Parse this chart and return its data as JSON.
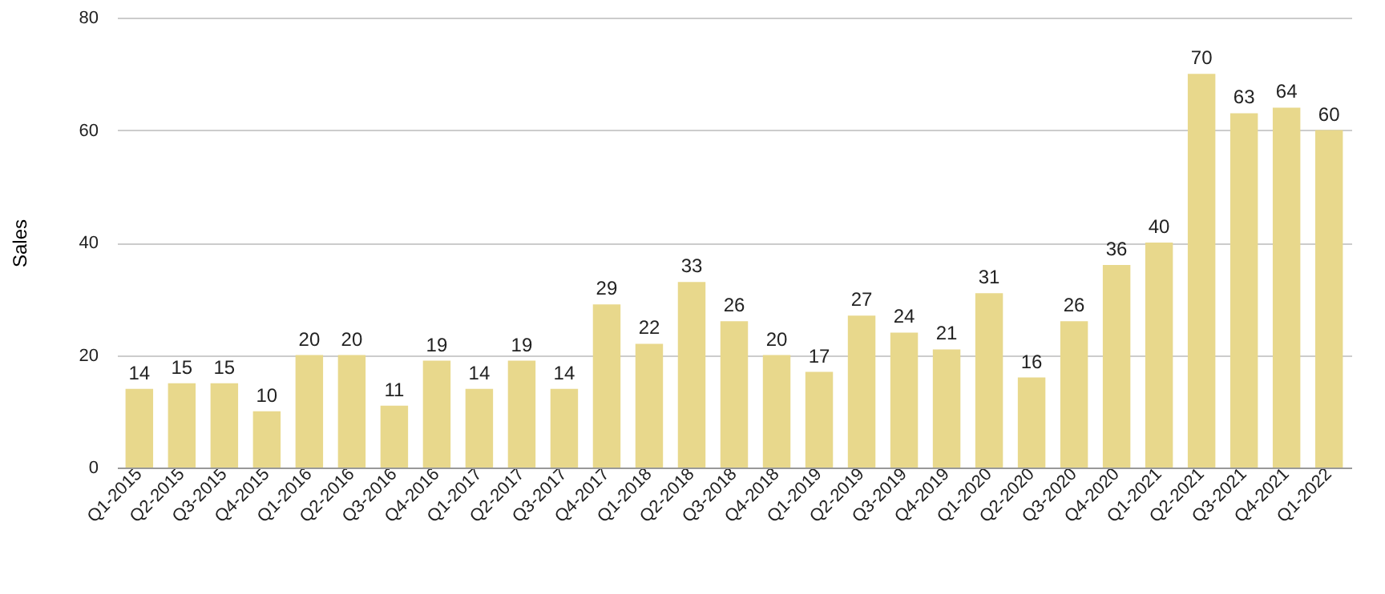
{
  "chart_data": {
    "type": "bar",
    "ylabel": "Sales",
    "categories": [
      "Q1-2015",
      "Q2-2015",
      "Q3-2015",
      "Q4-2015",
      "Q1-2016",
      "Q2-2016",
      "Q3-2016",
      "Q4-2016",
      "Q1-2017",
      "Q2-2017",
      "Q3-2017",
      "Q4-2017",
      "Q1-2018",
      "Q2-2018",
      "Q3-2018",
      "Q4-2018",
      "Q1-2019",
      "Q2-2019",
      "Q3-2019",
      "Q4-2019",
      "Q1-2020",
      "Q2-2020",
      "Q3-2020",
      "Q4-2020",
      "Q1-2021",
      "Q2-2021",
      "Q3-2021",
      "Q4-2021",
      "Q1-2022"
    ],
    "values": [
      14,
      15,
      15,
      10,
      20,
      20,
      11,
      19,
      14,
      19,
      14,
      29,
      22,
      33,
      26,
      20,
      17,
      27,
      24,
      21,
      31,
      16,
      26,
      36,
      40,
      70,
      63,
      64,
      60
    ],
    "color": "#e8d88c",
    "ylim": [
      0,
      80
    ],
    "yticks": [
      0,
      20,
      40,
      60,
      80
    ],
    "grid": "y",
    "data_labels": true
  }
}
